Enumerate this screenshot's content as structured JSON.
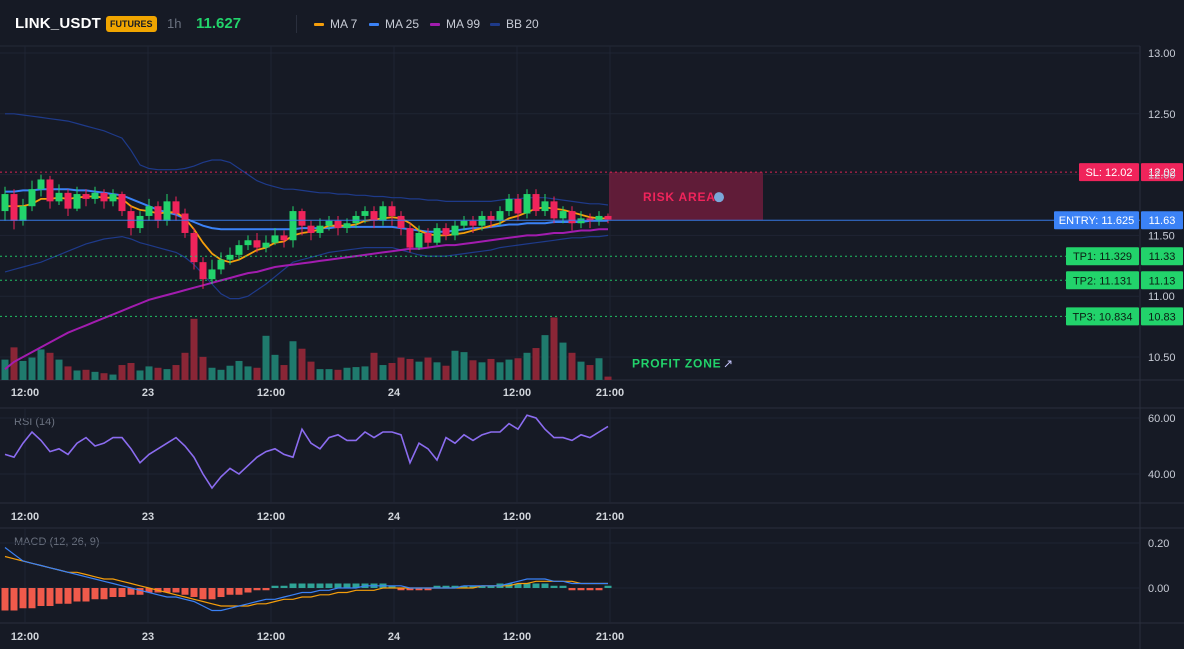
{
  "header": {
    "symbol": "LINK_USDT",
    "badge": "FUTURES",
    "timeframe": "1h",
    "price": "11.627"
  },
  "legend": [
    {
      "label": "MA 7",
      "color": "#f59e0b"
    },
    {
      "label": "MA 25",
      "color": "#3b82f6"
    },
    {
      "label": "MA 99",
      "color": "#a21caf"
    },
    {
      "label": "BB 20",
      "color": "#1e3a8a"
    }
  ],
  "colors": {
    "up": "#22d36b",
    "down": "#f0245b",
    "vol_up": "#1f7a6d",
    "vol_down": "#8a2636",
    "macd_pos": "#2fa396",
    "macd_neg": "#f05a4b",
    "sl": "#f0245b",
    "entry": "#3b82f6",
    "tp": "#22d36b",
    "rsi": "#8b6cf0"
  },
  "chart_data": [
    {
      "type": "candlestick",
      "title": "",
      "x_ticks": [
        "12:00",
        "23",
        "12:00",
        "24",
        "12:00",
        "21:00"
      ],
      "y_ticks": [
        "13.00",
        "12.50",
        "12.00",
        "11.50",
        "11.00",
        "10.50"
      ],
      "ylim": [
        10.35,
        13.05
      ],
      "bars": 68,
      "candles": [
        [
          11.7,
          11.84,
          11.9,
          11.62
        ],
        [
          11.84,
          11.62,
          11.88,
          11.55
        ],
        [
          11.62,
          11.74,
          11.8,
          11.58
        ],
        [
          11.74,
          11.88,
          11.95,
          11.7
        ],
        [
          11.88,
          11.96,
          12.0,
          11.82
        ],
        [
          11.96,
          11.78,
          11.99,
          11.72
        ],
        [
          11.78,
          11.85,
          11.92,
          11.75
        ],
        [
          11.85,
          11.72,
          11.88,
          11.66
        ],
        [
          11.72,
          11.84,
          11.9,
          11.7
        ],
        [
          11.84,
          11.8,
          11.88,
          11.74
        ],
        [
          11.8,
          11.85,
          11.9,
          11.76
        ],
        [
          11.85,
          11.78,
          11.88,
          11.72
        ],
        [
          11.78,
          11.84,
          11.88,
          11.74
        ],
        [
          11.84,
          11.7,
          11.86,
          11.66
        ],
        [
          11.7,
          11.56,
          11.74,
          11.5
        ],
        [
          11.56,
          11.66,
          11.7,
          11.52
        ],
        [
          11.66,
          11.74,
          11.8,
          11.62
        ],
        [
          11.74,
          11.62,
          11.78,
          11.56
        ],
        [
          11.62,
          11.78,
          11.84,
          11.58
        ],
        [
          11.78,
          11.68,
          11.82,
          11.62
        ],
        [
          11.68,
          11.52,
          11.72,
          11.48
        ],
        [
          11.52,
          11.28,
          11.56,
          11.22
        ],
        [
          11.28,
          11.14,
          11.32,
          11.06
        ],
        [
          11.14,
          11.22,
          11.3,
          11.1
        ],
        [
          11.22,
          11.3,
          11.36,
          11.18
        ],
        [
          11.3,
          11.34,
          11.4,
          11.26
        ],
        [
          11.34,
          11.42,
          11.46,
          11.3
        ],
        [
          11.42,
          11.46,
          11.5,
          11.38
        ],
        [
          11.46,
          11.4,
          11.52,
          11.36
        ],
        [
          11.4,
          11.44,
          11.5,
          11.36
        ],
        [
          11.44,
          11.5,
          11.56,
          11.42
        ],
        [
          11.5,
          11.46,
          11.54,
          11.4
        ],
        [
          11.46,
          11.7,
          11.74,
          11.4
        ],
        [
          11.7,
          11.58,
          11.72,
          11.5
        ],
        [
          11.58,
          11.52,
          11.62,
          11.46
        ],
        [
          11.52,
          11.58,
          11.64,
          11.48
        ],
        [
          11.58,
          11.62,
          11.66,
          11.54
        ],
        [
          11.62,
          11.56,
          11.66,
          11.5
        ],
        [
          11.56,
          11.6,
          11.64,
          11.52
        ],
        [
          11.6,
          11.66,
          11.7,
          11.56
        ],
        [
          11.66,
          11.7,
          11.74,
          11.6
        ],
        [
          11.7,
          11.62,
          11.74,
          11.56
        ],
        [
          11.62,
          11.74,
          11.78,
          11.58
        ],
        [
          11.74,
          11.66,
          11.78,
          11.58
        ],
        [
          11.66,
          11.56,
          11.7,
          11.5
        ],
        [
          11.56,
          11.4,
          11.6,
          11.36
        ],
        [
          11.4,
          11.52,
          11.58,
          11.38
        ],
        [
          11.52,
          11.44,
          11.56,
          11.4
        ],
        [
          11.44,
          11.56,
          11.6,
          11.42
        ],
        [
          11.56,
          11.5,
          11.6,
          11.46
        ],
        [
          11.5,
          11.58,
          11.62,
          11.46
        ],
        [
          11.58,
          11.62,
          11.66,
          11.54
        ],
        [
          11.62,
          11.58,
          11.66,
          11.52
        ],
        [
          11.58,
          11.66,
          11.7,
          11.54
        ],
        [
          11.66,
          11.62,
          11.7,
          11.56
        ],
        [
          11.62,
          11.7,
          11.74,
          11.58
        ],
        [
          11.7,
          11.8,
          11.84,
          11.66
        ],
        [
          11.8,
          11.68,
          11.84,
          11.62
        ],
        [
          11.68,
          11.84,
          11.88,
          11.64
        ],
        [
          11.84,
          11.7,
          11.88,
          11.66
        ],
        [
          11.7,
          11.78,
          11.84,
          11.66
        ],
        [
          11.78,
          11.64,
          11.82,
          11.6
        ],
        [
          11.64,
          11.7,
          11.74,
          11.6
        ],
        [
          11.7,
          11.6,
          11.74,
          11.54
        ],
        [
          11.6,
          11.64,
          11.7,
          11.56
        ],
        [
          11.64,
          11.62,
          11.68,
          11.56
        ],
        [
          11.62,
          11.66,
          11.7,
          11.58
        ],
        [
          11.66,
          11.63,
          11.68,
          11.6
        ]
      ],
      "ma7": [
        11.74,
        11.74,
        11.74,
        11.76,
        11.8,
        11.8,
        11.81,
        11.8,
        11.81,
        11.82,
        11.82,
        11.81,
        11.81,
        11.8,
        11.74,
        11.71,
        11.7,
        11.68,
        11.69,
        11.69,
        11.64,
        11.55,
        11.44,
        11.35,
        11.3,
        11.28,
        11.3,
        11.34,
        11.38,
        11.4,
        11.44,
        11.45,
        11.5,
        11.52,
        11.53,
        11.55,
        11.58,
        11.58,
        11.58,
        11.59,
        11.62,
        11.63,
        11.64,
        11.65,
        11.64,
        11.6,
        11.54,
        11.51,
        11.5,
        11.5,
        11.51,
        11.52,
        11.54,
        11.56,
        11.58,
        11.6,
        11.64,
        11.66,
        11.69,
        11.72,
        11.73,
        11.72,
        11.71,
        11.69,
        11.67,
        11.65,
        11.64,
        11.64
      ],
      "ma25": [
        11.86,
        11.86,
        11.87,
        11.87,
        11.88,
        11.88,
        11.88,
        11.88,
        11.87,
        11.87,
        11.86,
        11.85,
        11.84,
        11.83,
        11.8,
        11.77,
        11.74,
        11.71,
        11.69,
        11.67,
        11.64,
        11.61,
        11.58,
        11.56,
        11.55,
        11.55,
        11.55,
        11.55,
        11.55,
        11.55,
        11.55,
        11.55,
        11.55,
        11.56,
        11.56,
        11.56,
        11.56,
        11.57,
        11.57,
        11.57,
        11.57,
        11.57,
        11.57,
        11.57,
        11.56,
        11.55,
        11.54,
        11.53,
        11.53,
        11.53,
        11.54,
        11.55,
        11.56,
        11.56,
        11.57,
        11.58,
        11.59,
        11.59,
        11.6,
        11.6,
        11.6,
        11.61,
        11.61,
        11.61,
        11.61,
        11.62,
        11.62,
        11.62
      ],
      "ma99": [
        10.4,
        10.46,
        10.5,
        10.54,
        10.58,
        10.62,
        10.66,
        10.7,
        10.73,
        10.76,
        10.79,
        10.82,
        10.85,
        10.88,
        10.91,
        10.94,
        10.97,
        10.99,
        11.01,
        11.03,
        11.05,
        11.07,
        11.09,
        11.11,
        11.13,
        11.15,
        11.17,
        11.19,
        11.2,
        11.22,
        11.24,
        11.25,
        11.26,
        11.27,
        11.28,
        11.29,
        11.3,
        11.31,
        11.32,
        11.33,
        11.34,
        11.35,
        11.36,
        11.37,
        11.38,
        11.39,
        11.39,
        11.4,
        11.41,
        11.42,
        11.42,
        11.43,
        11.44,
        11.45,
        11.46,
        11.47,
        11.48,
        11.49,
        11.5,
        11.5,
        11.51,
        11.52,
        11.52,
        11.53,
        11.54,
        11.54,
        11.55,
        11.55
      ],
      "bb_upper": [
        12.5,
        12.5,
        12.49,
        12.48,
        12.47,
        12.46,
        12.45,
        12.44,
        12.42,
        12.4,
        12.38,
        12.36,
        12.33,
        12.3,
        12.2,
        12.08,
        12.05,
        12.04,
        12.04,
        12.04,
        12.05,
        12.07,
        12.1,
        12.12,
        12.12,
        12.1,
        12.05,
        12.0,
        11.95,
        11.92,
        11.9,
        11.88,
        11.88,
        11.87,
        11.86,
        11.85,
        11.85,
        11.84,
        11.84,
        11.83,
        11.83,
        11.82,
        11.82,
        11.81,
        11.81,
        11.8,
        11.8,
        11.79,
        11.79,
        11.78,
        11.78,
        11.78,
        11.78,
        11.78,
        11.78,
        11.79,
        11.8,
        11.8,
        11.81,
        11.81,
        11.81,
        11.8,
        11.79,
        11.78,
        11.77,
        11.76,
        11.76,
        11.75
      ],
      "bb_lower": [
        11.2,
        11.22,
        11.24,
        11.26,
        11.28,
        11.31,
        11.34,
        11.37,
        11.4,
        11.43,
        11.45,
        11.47,
        11.48,
        11.49,
        11.47,
        11.44,
        11.42,
        11.4,
        11.38,
        11.36,
        11.32,
        11.26,
        11.18,
        11.1,
        11.02,
        10.98,
        10.98,
        11.0,
        11.05,
        11.1,
        11.16,
        11.22,
        11.28,
        11.3,
        11.32,
        11.34,
        11.36,
        11.37,
        11.38,
        11.39,
        11.4,
        11.4,
        11.4,
        11.4,
        11.38,
        11.36,
        11.34,
        11.33,
        11.33,
        11.33,
        11.34,
        11.35,
        11.36,
        11.37,
        11.38,
        11.4,
        11.41,
        11.42,
        11.43,
        11.44,
        11.45,
        11.46,
        11.47,
        11.48,
        11.48,
        11.49,
        11.49,
        11.5
      ],
      "volume": [
        0.3,
        0.48,
        0.28,
        0.33,
        0.45,
        0.4,
        0.3,
        0.2,
        0.14,
        0.15,
        0.12,
        0.1,
        0.08,
        0.22,
        0.25,
        0.14,
        0.2,
        0.18,
        0.16,
        0.22,
        0.4,
        0.9,
        0.34,
        0.18,
        0.15,
        0.21,
        0.28,
        0.2,
        0.18,
        0.65,
        0.37,
        0.22,
        0.57,
        0.46,
        0.27,
        0.16,
        0.16,
        0.15,
        0.18,
        0.19,
        0.2,
        0.4,
        0.22,
        0.25,
        0.33,
        0.31,
        0.27,
        0.33,
        0.26,
        0.21,
        0.43,
        0.41,
        0.29,
        0.26,
        0.31,
        0.26,
        0.3,
        0.32,
        0.4,
        0.47,
        0.66,
        0.92,
        0.55,
        0.4,
        0.27,
        0.22,
        0.32,
        0.05
      ],
      "levels": {
        "sl": {
          "value": 12.02,
          "label": "SL: 12.02",
          "axis": "12.02"
        },
        "entry": {
          "value": 11.625,
          "label": "ENTRY: 11.625",
          "axis": "11.63"
        },
        "tp1": {
          "value": 11.329,
          "label": "TP1: 11.329",
          "axis": "11.33"
        },
        "tp2": {
          "value": 11.131,
          "label": "TP2: 11.131",
          "axis": "11.13"
        },
        "tp3": {
          "value": 10.834,
          "label": "TP3: 10.834",
          "axis": "10.83"
        }
      },
      "zones": {
        "risk": {
          "label": "RISK AREA",
          "from": 11.625,
          "to": 12.02
        },
        "profit": {
          "label": "PROFIT ZONE",
          "from": 10.834,
          "to": 11.625
        }
      }
    },
    {
      "type": "line",
      "name": "RSI (14)",
      "y_ticks": [
        "60.00",
        "40.00"
      ],
      "ylim": [
        30,
        64
      ],
      "values": [
        47,
        46,
        51,
        55,
        52,
        48,
        49,
        47,
        51,
        53,
        50,
        51,
        53,
        53,
        49,
        44,
        47,
        49,
        51,
        53,
        50,
        46,
        40,
        35,
        39,
        42,
        40,
        43,
        46,
        48,
        49,
        47,
        46,
        56,
        51,
        49,
        53,
        54,
        52,
        52,
        55,
        53,
        55,
        55,
        54,
        44,
        51,
        49,
        45,
        53,
        51,
        54,
        52,
        54,
        55,
        55,
        58,
        56,
        61,
        60,
        56,
        53,
        53,
        52,
        54,
        53,
        55,
        57
      ]
    },
    {
      "type": "macd",
      "name": "MACD (12, 26, 9)",
      "y_ticks": [
        "0.20",
        "0.00"
      ],
      "ylim": [
        -0.16,
        0.24
      ],
      "macd": [
        0.18,
        0.15,
        0.12,
        0.11,
        0.1,
        0.09,
        0.08,
        0.07,
        0.06,
        0.05,
        0.04,
        0.03,
        0.02,
        0.01,
        0.0,
        -0.01,
        -0.02,
        -0.03,
        -0.04,
        -0.04,
        -0.05,
        -0.06,
        -0.08,
        -0.1,
        -0.1,
        -0.09,
        -0.08,
        -0.07,
        -0.06,
        -0.05,
        -0.05,
        -0.04,
        -0.03,
        -0.02,
        -0.02,
        -0.01,
        -0.01,
        0.0,
        0.0,
        0.0,
        0.01,
        0.01,
        0.01,
        0.01,
        0.01,
        0.0,
        0.0,
        0.0,
        0.0,
        0.0,
        0.0,
        0.01,
        0.01,
        0.01,
        0.01,
        0.01,
        0.02,
        0.03,
        0.04,
        0.04,
        0.04,
        0.03,
        0.03,
        0.02,
        0.02,
        0.02,
        0.02,
        0.02
      ],
      "signal": [
        0.14,
        0.13,
        0.12,
        0.11,
        0.1,
        0.09,
        0.08,
        0.07,
        0.07,
        0.06,
        0.05,
        0.04,
        0.04,
        0.03,
        0.02,
        0.01,
        0.0,
        -0.01,
        -0.02,
        -0.03,
        -0.04,
        -0.05,
        -0.06,
        -0.07,
        -0.08,
        -0.08,
        -0.08,
        -0.08,
        -0.07,
        -0.07,
        -0.06,
        -0.05,
        -0.05,
        -0.04,
        -0.04,
        -0.03,
        -0.03,
        -0.02,
        -0.02,
        -0.01,
        -0.01,
        -0.01,
        0.0,
        0.0,
        0.0,
        0.0,
        0.0,
        0.0,
        0.0,
        0.0,
        0.0,
        0.0,
        0.0,
        0.01,
        0.01,
        0.01,
        0.01,
        0.02,
        0.02,
        0.03,
        0.03,
        0.03,
        0.03,
        0.03,
        0.02,
        0.02,
        0.02,
        0.02
      ],
      "hist": [
        -0.1,
        -0.1,
        -0.09,
        -0.09,
        -0.08,
        -0.08,
        -0.07,
        -0.07,
        -0.06,
        -0.06,
        -0.05,
        -0.05,
        -0.04,
        -0.04,
        -0.03,
        -0.03,
        -0.02,
        -0.02,
        -0.02,
        -0.02,
        -0.03,
        -0.04,
        -0.05,
        -0.05,
        -0.04,
        -0.03,
        -0.03,
        -0.02,
        -0.01,
        -0.01,
        0.01,
        0.01,
        0.02,
        0.02,
        0.02,
        0.02,
        0.02,
        0.02,
        0.02,
        0.02,
        0.02,
        0.02,
        0.02,
        0.01,
        -0.01,
        -0.01,
        -0.01,
        -0.01,
        0.01,
        0.01,
        0.01,
        0.01,
        0.01,
        0.01,
        0.01,
        0.02,
        0.02,
        0.02,
        0.02,
        0.02,
        0.02,
        0.01,
        0.01,
        -0.01,
        -0.01,
        -0.01,
        -0.01,
        0.01
      ]
    }
  ]
}
